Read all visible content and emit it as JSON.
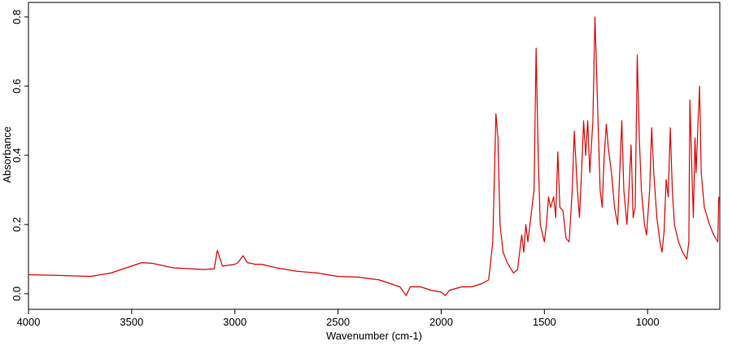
{
  "chart_data": {
    "type": "line",
    "x_label": "Wavenumber (cm-1)",
    "y_label": "Absorbance",
    "xlim": [
      4000,
      650
    ],
    "ylim": [
      -0.045,
      0.842
    ],
    "xticks": [
      4000,
      3500,
      3000,
      2500,
      2000,
      1500,
      1000
    ],
    "yticks": [
      {
        "value": 0,
        "label": "0.0"
      },
      0.2,
      0.4,
      0.6,
      0.8
    ],
    "series": [
      {
        "name": "Absorbance",
        "color": "#e00000",
        "x": [
          4000,
          3850,
          3700,
          3600,
          3500,
          3450,
          3400,
          3300,
          3150,
          3100,
          3085,
          3060,
          3000,
          2985,
          2960,
          2940,
          2900,
          2870,
          2800,
          2700,
          2600,
          2500,
          2400,
          2300,
          2250,
          2200,
          2170,
          2150,
          2100,
          2050,
          2000,
          1980,
          1960,
          1900,
          1850,
          1800,
          1770,
          1750,
          1735,
          1725,
          1715,
          1700,
          1680,
          1650,
          1630,
          1610,
          1600,
          1590,
          1580,
          1560,
          1550,
          1540,
          1530,
          1520,
          1500,
          1490,
          1480,
          1470,
          1455,
          1445,
          1435,
          1425,
          1410,
          1395,
          1380,
          1365,
          1355,
          1340,
          1330,
          1320,
          1310,
          1300,
          1290,
          1280,
          1265,
          1255,
          1245,
          1230,
          1220,
          1210,
          1200,
          1190,
          1175,
          1160,
          1145,
          1135,
          1125,
          1115,
          1100,
          1090,
          1080,
          1070,
          1060,
          1050,
          1040,
          1030,
          1015,
          1005,
          990,
          980,
          970,
          955,
          940,
          930,
          920,
          910,
          900,
          890,
          880,
          870,
          850,
          830,
          810,
          800,
          795,
          785,
          778,
          770,
          765,
          755,
          748,
          740,
          725,
          700,
          680,
          660,
          655
        ],
        "values": [
          0.055,
          0.053,
          0.05,
          0.06,
          0.08,
          0.09,
          0.088,
          0.075,
          0.07,
          0.072,
          0.125,
          0.08,
          0.085,
          0.09,
          0.11,
          0.09,
          0.085,
          0.085,
          0.075,
          0.065,
          0.06,
          0.05,
          0.048,
          0.04,
          0.03,
          0.02,
          -0.005,
          0.02,
          0.02,
          0.01,
          0.005,
          -0.005,
          0.01,
          0.02,
          0.02,
          0.03,
          0.04,
          0.15,
          0.52,
          0.45,
          0.2,
          0.12,
          0.09,
          0.06,
          0.07,
          0.17,
          0.12,
          0.2,
          0.15,
          0.25,
          0.3,
          0.71,
          0.4,
          0.2,
          0.15,
          0.2,
          0.28,
          0.25,
          0.28,
          0.22,
          0.41,
          0.25,
          0.24,
          0.16,
          0.15,
          0.3,
          0.47,
          0.3,
          0.22,
          0.35,
          0.5,
          0.4,
          0.5,
          0.35,
          0.5,
          0.8,
          0.6,
          0.3,
          0.25,
          0.4,
          0.49,
          0.42,
          0.35,
          0.25,
          0.2,
          0.35,
          0.5,
          0.3,
          0.2,
          0.3,
          0.43,
          0.22,
          0.25,
          0.69,
          0.45,
          0.3,
          0.2,
          0.17,
          0.3,
          0.48,
          0.35,
          0.22,
          0.15,
          0.12,
          0.18,
          0.33,
          0.28,
          0.48,
          0.3,
          0.2,
          0.15,
          0.12,
          0.1,
          0.15,
          0.56,
          0.35,
          0.22,
          0.45,
          0.35,
          0.5,
          0.6,
          0.35,
          0.25,
          0.2,
          0.17,
          0.15,
          0.28
        ]
      }
    ]
  }
}
